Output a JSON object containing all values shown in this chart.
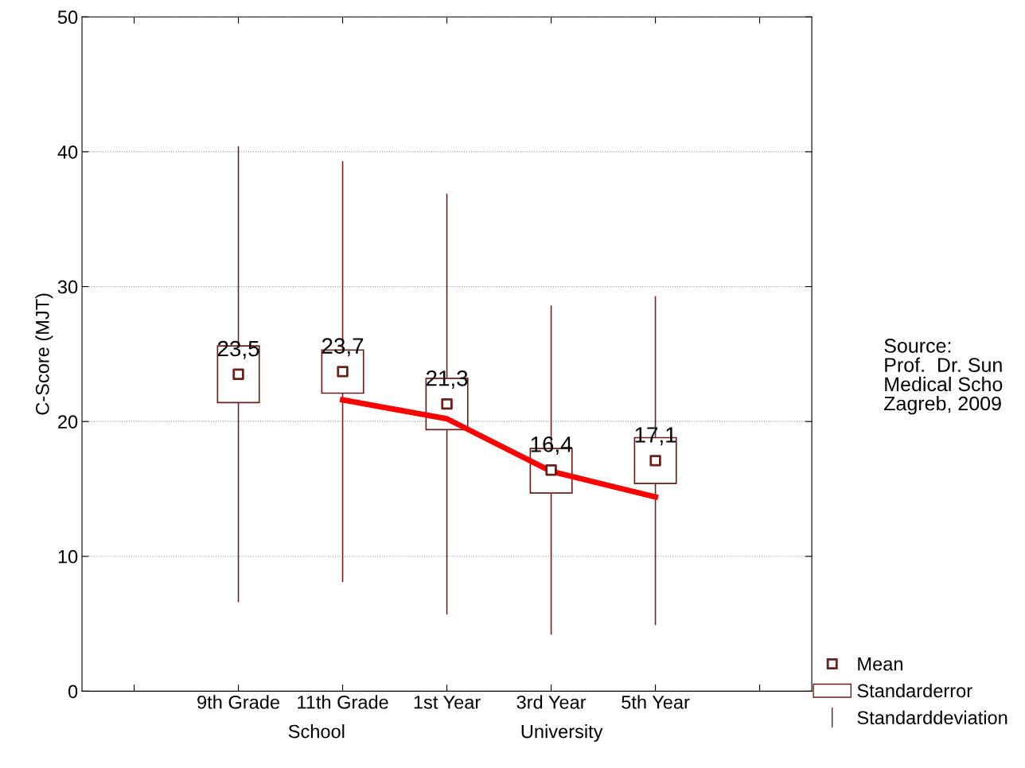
{
  "chart_data": {
    "type": "scatter",
    "ylabel": "C-Score (MJT)",
    "categories": [
      null,
      "9th Grade",
      "11th Grade",
      "1st Year",
      "3rd Year",
      "5th Year",
      null
    ],
    "ylim": [
      0,
      50
    ],
    "yticks": [
      0,
      10,
      20,
      30,
      40,
      50
    ],
    "grid": "y",
    "legend": "bottom right",
    "series": [
      {
        "name": "Mean",
        "marker": "square",
        "color": "#6b1f1f",
        "values": [
          null,
          23.5,
          23.7,
          21.3,
          16.4,
          17.1,
          null
        ],
        "value_labels": [
          null,
          "23,5",
          "23,7",
          "21,3",
          "16,4",
          "17,1",
          null
        ]
      },
      {
        "name": "Standarderror",
        "type": "bar",
        "color": "#6b1f1f",
        "base": [
          null,
          21.4,
          22.1,
          19.4,
          14.7,
          15.4,
          null
        ],
        "values": [
          null,
          4.2,
          3.2,
          3.8,
          3.3,
          3.4,
          null
        ]
      },
      {
        "name": "Standarddeviation",
        "type": "bar",
        "color": "#6b1f1f",
        "base": [
          null,
          6.6,
          8.1,
          5.7,
          4.2,
          4.9,
          null
        ],
        "values": [
          null,
          33.8,
          31.2,
          31.2,
          24.4,
          24.4,
          null
        ]
      },
      {
        "type": "line",
        "color": "#ff0000",
        "values": [
          null,
          null,
          21.6,
          20.2,
          16.3,
          14.4,
          null
        ]
      }
    ],
    "annotations": [
      "School",
      "University",
      "Source:\nProf.  Dr. Sun\nMedical Scho\nZagreb, 2009"
    ]
  }
}
